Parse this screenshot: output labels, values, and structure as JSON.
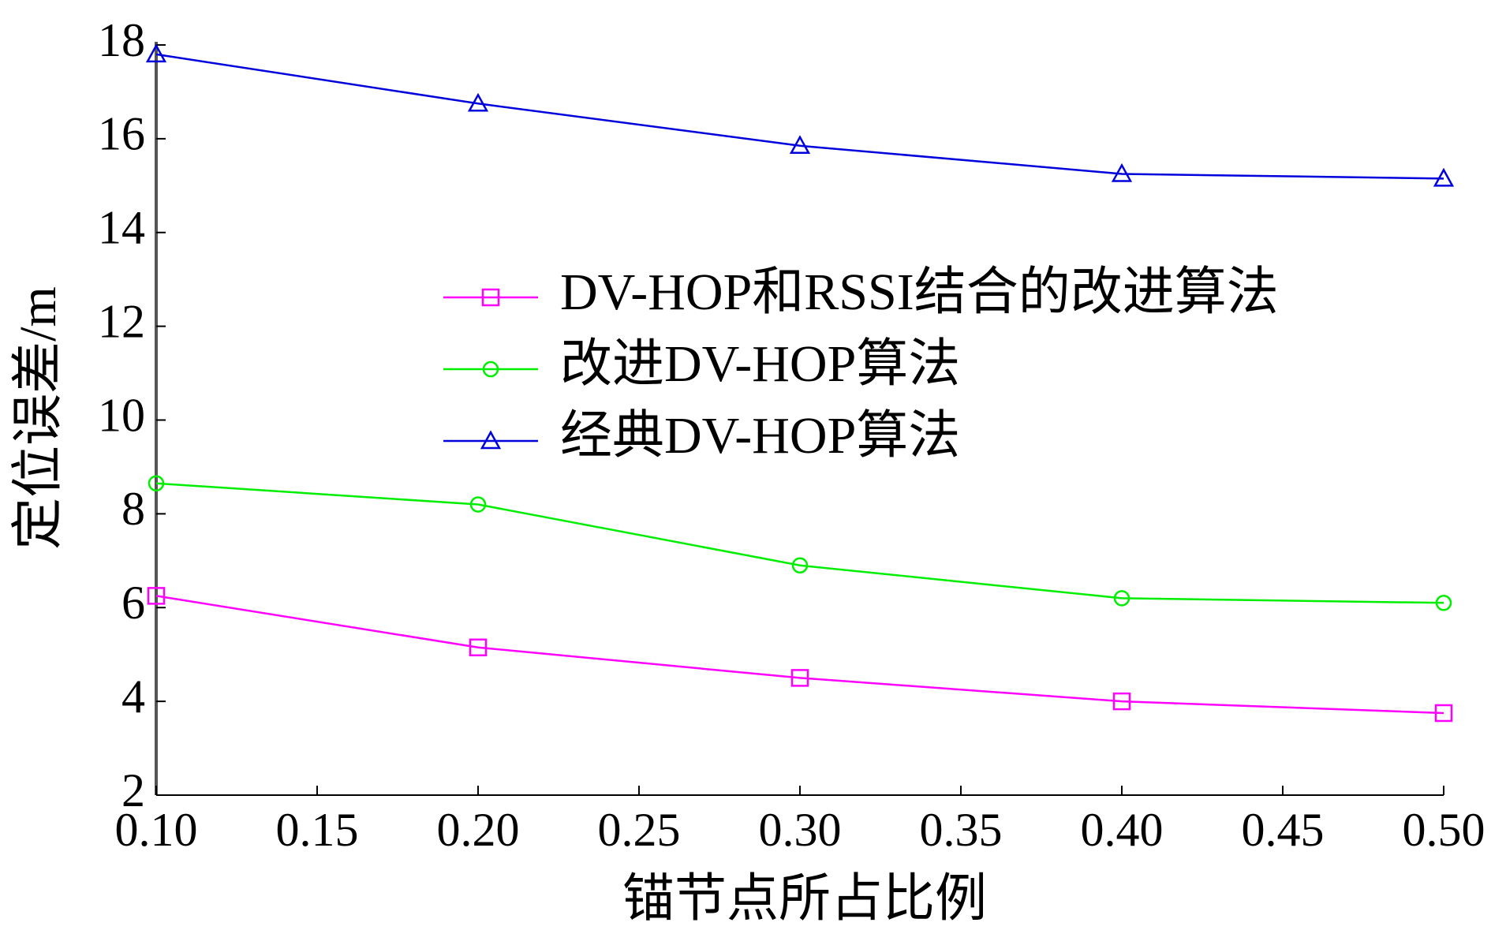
{
  "chart_data": {
    "type": "line",
    "xlabel": "锚节点所占比例",
    "ylabel": "定位误差/m",
    "x": [
      0.1,
      0.2,
      0.3,
      0.4,
      0.5
    ],
    "series": [
      {
        "name": "DV-HOP和RSSI结合的改进算法",
        "color": "#ff00ff",
        "marker": "square",
        "values": [
          6.25,
          5.15,
          4.5,
          4.0,
          3.75
        ]
      },
      {
        "name": "改进DV-HOP算法",
        "color": "#00ee00",
        "marker": "circle",
        "values": [
          8.65,
          8.2,
          6.9,
          6.2,
          6.1
        ]
      },
      {
        "name": "经典DV-HOP算法",
        "color": "#0000dd",
        "marker": "triangle",
        "values": [
          17.8,
          16.75,
          15.85,
          15.25,
          15.15
        ]
      }
    ],
    "xlim": [
      0.1,
      0.5
    ],
    "xticks": [
      {
        "value": 0.1,
        "label": "0.10"
      },
      {
        "value": 0.15,
        "label": "0.15"
      },
      {
        "value": 0.2,
        "label": "0.20"
      },
      {
        "value": 0.25,
        "label": "0.25"
      },
      {
        "value": 0.3,
        "label": "0.30"
      },
      {
        "value": 0.35,
        "label": "0.35"
      },
      {
        "value": 0.4,
        "label": "0.40"
      },
      {
        "value": 0.45,
        "label": "0.45"
      },
      {
        "value": 0.5,
        "label": "0.50"
      }
    ],
    "ylim": [
      2,
      18
    ],
    "yticks": [
      2,
      4,
      6,
      8,
      10,
      12,
      14,
      16,
      18
    ],
    "grid": false
  }
}
